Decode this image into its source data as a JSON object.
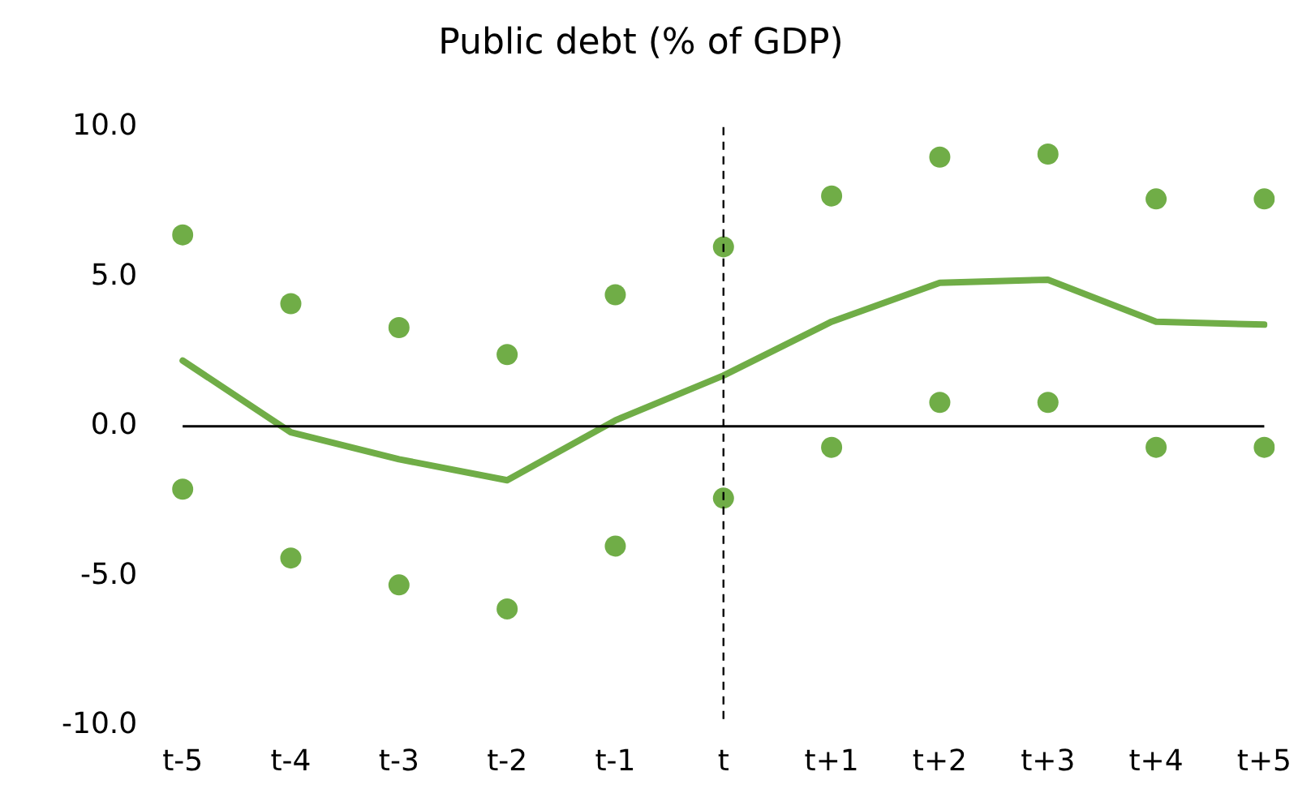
{
  "chart_data": {
    "type": "line",
    "title": "Public debt (% of GDP)",
    "categories": [
      "t-5",
      "t-4",
      "t-3",
      "t-2",
      "t-1",
      "t",
      "t+1",
      "t+2",
      "t+3",
      "t+4",
      "t+5"
    ],
    "series": [
      {
        "color": "#70ad47",
        "marker": "none",
        "values": [
          2.2,
          -0.2,
          -1.1,
          -1.8,
          0.2,
          1.7,
          3.5,
          4.8,
          4.9,
          3.5,
          3.4
        ]
      },
      {
        "type": "scatter",
        "color": "#70ad47",
        "marker": "circle",
        "values": [
          6.4,
          4.1,
          3.3,
          2.4,
          4.4,
          6.0,
          7.7,
          9.0,
          9.1,
          7.6,
          7.6
        ]
      },
      {
        "type": "scatter",
        "color": "#70ad47",
        "marker": "circle",
        "values": [
          -2.1,
          -4.4,
          -5.3,
          -6.1,
          -4.0,
          -2.4,
          -0.7,
          0.8,
          0.8,
          -0.7,
          -0.7
        ]
      }
    ],
    "ylim": [
      -10,
      10
    ],
    "yticks": [
      {
        "value": 10,
        "label": "10.0"
      },
      {
        "value": 5,
        "label": "5.0"
      },
      {
        "value": 0,
        "label": "0.0"
      },
      {
        "value": -5,
        "label": "-5.0"
      },
      {
        "value": -10,
        "label": "-10.0"
      }
    ],
    "ref_lines": [
      {
        "axis": "y",
        "value": 0,
        "color": "#000000",
        "line_style": "solid"
      },
      {
        "axis": "x",
        "value": "t",
        "color": "#000000",
        "line_style": "dashed"
      }
    ],
    "grid": false,
    "legend": false
  }
}
